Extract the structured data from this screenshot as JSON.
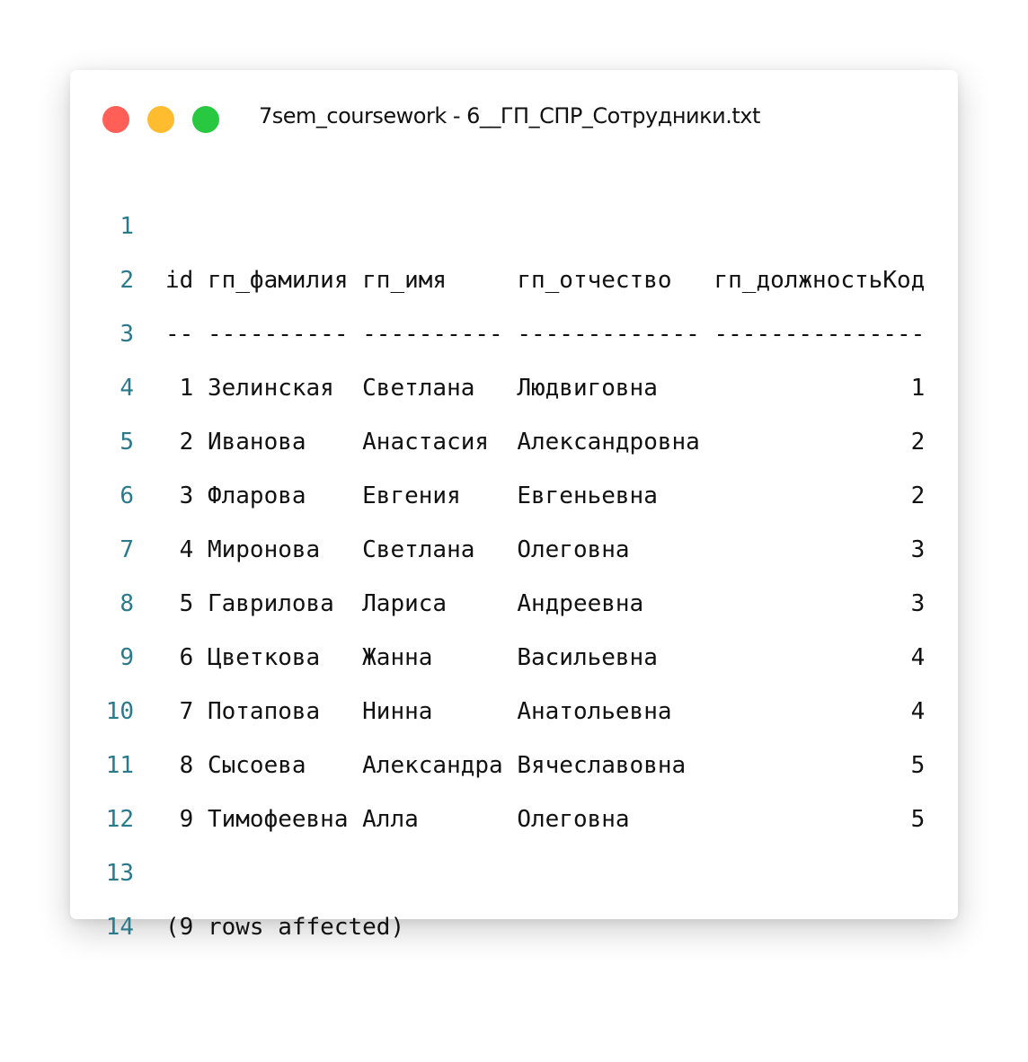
{
  "window": {
    "title": "7sem_coursework - 6__ГП_СПР_Сотрудники.txt",
    "buttons": [
      {
        "name": "close",
        "color": "#ff5f57"
      },
      {
        "name": "minimize",
        "color": "#febc2e"
      },
      {
        "name": "maximize",
        "color": "#28c840"
      }
    ]
  },
  "editor": {
    "lines": [
      {
        "number": "1",
        "text": "id гп_фамилия гп_имя     гп_отчество   гп_должностьКод"
      },
      {
        "number": "2",
        "text": "-- ---------- ---------- ------------- ---------------"
      },
      {
        "number": "3",
        "text": " 1 Зелинская  Светлана   Людвиговна                  1"
      },
      {
        "number": "4",
        "text": " 2 Иванова    Анастасия  Александровна               2"
      },
      {
        "number": "5",
        "text": " 3 Фларова    Евгения    Евгеньевна                  2"
      },
      {
        "number": "6",
        "text": " 4 Миронова   Светлана   Олеговна                    3"
      },
      {
        "number": "7",
        "text": " 5 Гаврилова  Лариса     Андреевна                   3"
      },
      {
        "number": "8",
        "text": " 6 Цветкова   Жанна      Васильевна                  4"
      },
      {
        "number": "9",
        "text": " 7 Потапова   Нинна      Анатольевна                 4"
      },
      {
        "number": "10",
        "text": " 8 Сысоева    Александра Вячеславовна                5"
      },
      {
        "number": "11",
        "text": " 9 Тимофеевна Алла       Олеговна                    5"
      },
      {
        "number": "12",
        "text": ""
      },
      {
        "number": "13",
        "text": "(9 rows affected)"
      },
      {
        "number": "14",
        "text": ""
      }
    ]
  }
}
